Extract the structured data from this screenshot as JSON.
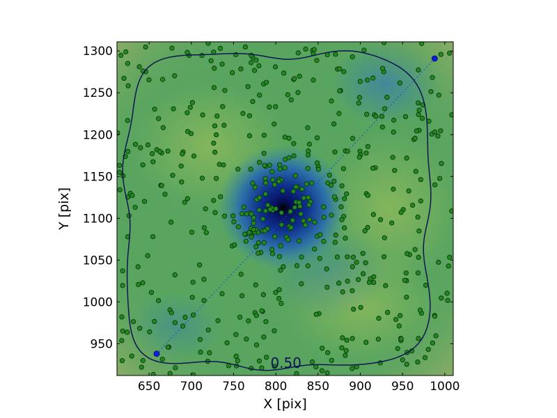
{
  "chart_data": {
    "type": "scatter",
    "xlabel": "X [pix]",
    "ylabel": "Y [pix]",
    "xlim": [
      612,
      1010
    ],
    "ylim": [
      912,
      1311
    ],
    "x_ticks": [
      650,
      700,
      750,
      800,
      850,
      900,
      950,
      1000
    ],
    "y_ticks": [
      950,
      1000,
      1050,
      1100,
      1150,
      1200,
      1250,
      1300
    ],
    "background": "density heatmap (dark blue minimum near center, green mid, tan/pink edges)",
    "colors": {
      "minimum": "#000000",
      "deep": "#0a1a78",
      "mid_blue": "#2f75a5",
      "green": "#59a55f",
      "light_green": "#7fb457",
      "tan": "#b9a878",
      "pink": "#f2e2e2",
      "contour": "#0d1650",
      "points_fill": "#1f8a1f",
      "points_edge": "#0a2a0a",
      "diagonal": "#1c4fc8",
      "endpoints": "#0a1fe0"
    },
    "minimum": {
      "x": 812,
      "y": 1113
    },
    "contour": {
      "level_label": "0.50",
      "label_x": 812,
      "label_y": 928
    },
    "diagonal": {
      "start": {
        "x": 659,
        "y": 938
      },
      "end": {
        "x": 988,
        "y": 1291
      }
    },
    "point_count": 520
  }
}
